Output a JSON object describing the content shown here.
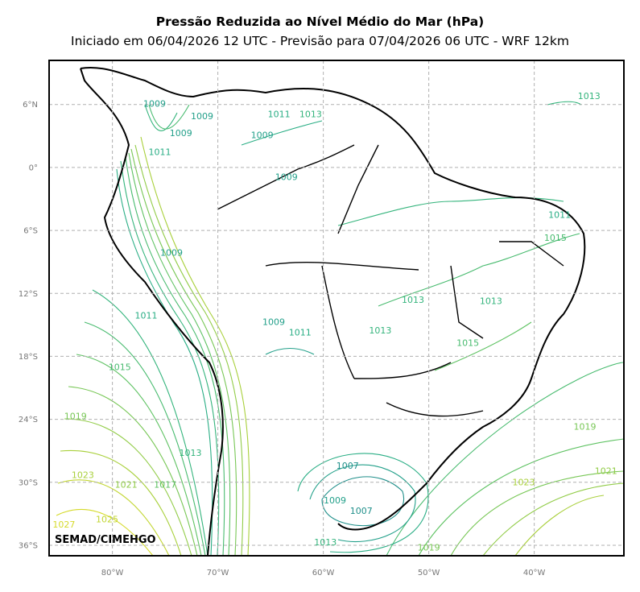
{
  "header": {
    "title": "Pressão Reduzida ao Nível Médio do Mar (hPa)",
    "subtitle": "Iniciado em 06/04/2026 12 UTC - Previsão para 07/04/2026 06 UTC - WRF 12km"
  },
  "credit": "SEMAD/CIMEHGO",
  "map": {
    "lon_range": [
      -86,
      -31.5
    ],
    "lat_range": [
      -37,
      10.2
    ],
    "grid": true,
    "lat_ticks": [
      {
        "lat": 6,
        "label": "6°N"
      },
      {
        "lat": 0,
        "label": "0°"
      },
      {
        "lat": -6,
        "label": "6°S"
      },
      {
        "lat": -12,
        "label": "12°S"
      },
      {
        "lat": -18,
        "label": "18°S"
      },
      {
        "lat": -24,
        "label": "24°S"
      },
      {
        "lat": -30,
        "label": "30°S"
      },
      {
        "lat": -36,
        "label": "36°S"
      }
    ],
    "lon_ticks": [
      {
        "lon": -80,
        "label": "80°W"
      },
      {
        "lon": -70,
        "label": "70°W"
      },
      {
        "lon": -60,
        "label": "60°W"
      },
      {
        "lon": -50,
        "label": "50°W"
      },
      {
        "lon": -40,
        "label": "40°W"
      }
    ],
    "colors": {
      "1007": "#1f8f8a",
      "1009": "#23a08a",
      "1011": "#2aae85",
      "1013": "#34b47c",
      "1015": "#48bb6f",
      "1017": "#5ec262",
      "1019": "#78c756",
      "1021": "#92cc48",
      "1023": "#a9d03c",
      "1025": "#c2d632",
      "1027": "#d5da2a"
    },
    "contour_labels": [
      {
        "text": "1009",
        "lon": -76,
        "lat": 5.8
      },
      {
        "text": "1009",
        "lon": -73.5,
        "lat": 3.0
      },
      {
        "text": "1009",
        "lon": -71.5,
        "lat": 4.6
      },
      {
        "text": "1011",
        "lon": -75.5,
        "lat": 1.2
      },
      {
        "text": "1011",
        "lon": -64.2,
        "lat": 4.8
      },
      {
        "text": "1013",
        "lon": -61.2,
        "lat": 4.8
      },
      {
        "text": "1009",
        "lon": -65.8,
        "lat": 2.8
      },
      {
        "text": "1009",
        "lon": -63.5,
        "lat": -1.2
      },
      {
        "text": "1013",
        "lon": -34.8,
        "lat": 6.5
      },
      {
        "text": "1011",
        "lon": -37.6,
        "lat": -4.8
      },
      {
        "text": "1015",
        "lon": -38.0,
        "lat": -7.0
      },
      {
        "text": "1009",
        "lon": -74.4,
        "lat": -8.4
      },
      {
        "text": "1011",
        "lon": -76.8,
        "lat": -14.4
      },
      {
        "text": "1009",
        "lon": -64.7,
        "lat": -15.0
      },
      {
        "text": "1011",
        "lon": -62.2,
        "lat": -16.0
      },
      {
        "text": "1013",
        "lon": -51.5,
        "lat": -12.9
      },
      {
        "text": "1013",
        "lon": -54.6,
        "lat": -15.8
      },
      {
        "text": "1013",
        "lon": -44.1,
        "lat": -13.0
      },
      {
        "text": "1015",
        "lon": -46.3,
        "lat": -17.0
      },
      {
        "text": "1015",
        "lon": -79.3,
        "lat": -19.3
      },
      {
        "text": "1019",
        "lon": -83.5,
        "lat": -24.0
      },
      {
        "text": "1013",
        "lon": -72.6,
        "lat": -27.5
      },
      {
        "text": "1019",
        "lon": -35.2,
        "lat": -25.0
      },
      {
        "text": "1007",
        "lon": -57.7,
        "lat": -28.7
      },
      {
        "text": "1021",
        "lon": -33.2,
        "lat": -29.2
      },
      {
        "text": "1023",
        "lon": -82.8,
        "lat": -29.6
      },
      {
        "text": "1021",
        "lon": -78.7,
        "lat": -30.5
      },
      {
        "text": "1017",
        "lon": -75.0,
        "lat": -30.5
      },
      {
        "text": "1023",
        "lon": -41.0,
        "lat": -30.3
      },
      {
        "text": "1009",
        "lon": -58.9,
        "lat": -32.0
      },
      {
        "text": "1007",
        "lon": -56.4,
        "lat": -33.0
      },
      {
        "text": "1027",
        "lon": -84.6,
        "lat": -34.3
      },
      {
        "text": "1025",
        "lon": -80.5,
        "lat": -33.8
      },
      {
        "text": "1013",
        "lon": -59.8,
        "lat": -36.0
      },
      {
        "text": "1019",
        "lon": -50.0,
        "lat": -36.5
      }
    ]
  }
}
